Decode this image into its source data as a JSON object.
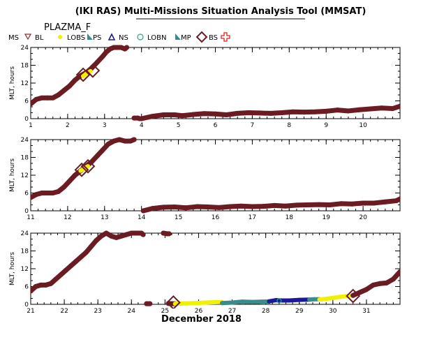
{
  "header": {
    "title": "(IKI RAS) Multi-Missions Situation Analysis Tool (MMSAT)",
    "satellite": "PLAZMA_F"
  },
  "legend": [
    {
      "label": "MS",
      "marker": "none",
      "color": "#000000"
    },
    {
      "label": "BL",
      "marker": "triangle-down-open",
      "color": "#8b2a2a"
    },
    {
      "label": "LOBS",
      "marker": "dot",
      "color": "#f0f000"
    },
    {
      "label": "PS",
      "marker": "flag",
      "color": "#3a8c8c"
    },
    {
      "label": "NS",
      "marker": "triangle-up-open",
      "color": "#1a1a9a"
    },
    {
      "label": "LOBN",
      "marker": "circle-open",
      "color": "#2aa38a"
    },
    {
      "label": "MP",
      "marker": "flag",
      "color": "#3a8c8c"
    },
    {
      "label": "BS",
      "marker": "diamond-open",
      "color": "#6b1c22"
    },
    {
      "label": "",
      "marker": "cross-open",
      "color": "#e02020"
    }
  ],
  "chart_data": [
    {
      "type": "scatter",
      "ylabel": "MLT, hours",
      "xlim": [
        1,
        11
      ],
      "ylim": [
        0,
        24
      ],
      "xticks": [
        "1",
        "2",
        "3",
        "4",
        "5",
        "6",
        "7",
        "8",
        "9",
        "10"
      ],
      "yticks": [
        "0",
        "6",
        "12",
        "18",
        "24"
      ],
      "series": [
        {
          "name": "MS",
          "color": "#6b1c22",
          "x": [
            1.0,
            1.15,
            1.3,
            1.45,
            1.6,
            1.75,
            1.9,
            2.05,
            2.2,
            2.35,
            2.5,
            2.65,
            2.8,
            2.95,
            3.05,
            3.15,
            3.25,
            3.35,
            3.45,
            3.55,
            3.6
          ],
          "y": [
            5,
            6.5,
            7,
            7,
            7,
            8,
            9.5,
            11,
            13,
            14.5,
            15.5,
            17,
            19,
            21,
            22.5,
            23.5,
            24,
            24,
            24,
            23.5,
            24
          ]
        },
        {
          "name": "MS",
          "color": "#6b1c22",
          "x": [
            3.8,
            3.9,
            3.95
          ],
          "y": [
            0.2,
            0.2,
            0
          ]
        },
        {
          "name": "MS",
          "color": "#6b1c22",
          "x": [
            4.0,
            4.3,
            4.6,
            4.9,
            5.1,
            5.4,
            5.7,
            6.0,
            6.3,
            6.6,
            6.9,
            7.2,
            7.5,
            7.8,
            8.1,
            8.4,
            8.7,
            9.0,
            9.3,
            9.6,
            9.9,
            10.2,
            10.5,
            10.8,
            11.0
          ],
          "y": [
            0,
            0.8,
            1.3,
            1.3,
            1.0,
            1.4,
            1.7,
            1.6,
            1.3,
            1.8,
            2.0,
            1.9,
            1.8,
            2.0,
            2.3,
            2.2,
            2.3,
            2.5,
            2.9,
            2.6,
            3.0,
            3.3,
            3.6,
            3.4,
            4.2
          ]
        },
        {
          "name": "LOBS",
          "color": "#f0f000",
          "x": [
            2.42,
            2.52,
            2.62
          ],
          "y": [
            14.3,
            15.3,
            16.0
          ]
        },
        {
          "name": "BS",
          "color": "#6b1c22",
          "x": [
            2.42,
            2.68
          ],
          "y": [
            14.8,
            16.2
          ]
        }
      ]
    },
    {
      "type": "scatter",
      "ylabel": "MLT, hours",
      "xlim": [
        11,
        21
      ],
      "ylim": [
        0,
        24
      ],
      "xticks": [
        "11",
        "12",
        "13",
        "14",
        "15",
        "16",
        "17",
        "18",
        "19",
        "20"
      ],
      "yticks": [
        "0",
        "6",
        "12",
        "18",
        "24"
      ],
      "series": [
        {
          "name": "MS",
          "color": "#6b1c22",
          "x": [
            11.0,
            11.15,
            11.3,
            11.45,
            11.6,
            11.75,
            11.9,
            12.05,
            12.2,
            12.35,
            12.5,
            12.65,
            12.8,
            12.95,
            13.1,
            13.25,
            13.4,
            13.55,
            13.7,
            13.8
          ],
          "y": [
            4.5,
            5.5,
            6,
            6,
            6,
            6.5,
            8,
            10,
            12,
            13.5,
            15,
            16.5,
            18.5,
            20.5,
            22.5,
            23.5,
            24,
            23.5,
            23.5,
            24
          ]
        },
        {
          "name": "MS",
          "color": "#6b1c22",
          "x": [
            14.05,
            14.3,
            14.6,
            14.9,
            15.2,
            15.5,
            15.8,
            16.1,
            16.4,
            16.7,
            17.0,
            17.3,
            17.6,
            17.9,
            18.2,
            18.5,
            18.8,
            19.1,
            19.4,
            19.7,
            20.0,
            20.3,
            20.6,
            20.9,
            21.0
          ],
          "y": [
            0,
            0.8,
            1.2,
            1.3,
            1.0,
            1.4,
            1.3,
            1.1,
            1.4,
            1.6,
            1.4,
            1.5,
            1.8,
            1.6,
            1.9,
            2.0,
            2.1,
            2.0,
            2.4,
            2.3,
            2.6,
            2.6,
            3.0,
            3.4,
            4.0
          ]
        },
        {
          "name": "LOBS",
          "color": "#f0f000",
          "x": [
            12.35,
            12.45,
            12.55
          ],
          "y": [
            13.5,
            14.3,
            15.0
          ]
        },
        {
          "name": "BS",
          "color": "#6b1c22",
          "x": [
            12.38,
            12.55
          ],
          "y": [
            13.8,
            15.0
          ]
        }
      ]
    },
    {
      "type": "scatter",
      "ylabel": "MLT, hours",
      "xlabel": "December 2018",
      "xlim": [
        21,
        32
      ],
      "ylim": [
        0,
        24
      ],
      "xticks": [
        "21",
        "22",
        "23",
        "24",
        "25",
        "26",
        "27",
        "28",
        "29",
        "30",
        "31"
      ],
      "yticks": [
        "0",
        "6",
        "12",
        "18",
        "24"
      ],
      "series": [
        {
          "name": "MS",
          "color": "#6b1c22",
          "x": [
            21.0,
            21.15,
            21.3,
            21.45,
            21.6,
            21.75,
            21.9,
            22.05,
            22.2,
            22.35,
            22.5,
            22.65,
            22.8,
            22.95,
            23.1,
            23.25,
            23.4,
            23.55,
            23.7,
            23.85,
            24.0,
            24.15,
            24.3,
            24.35
          ],
          "y": [
            4.5,
            6,
            6.5,
            6.5,
            7,
            8.5,
            10,
            11.5,
            13,
            14.5,
            16,
            17.5,
            19.5,
            21.5,
            23,
            24,
            23,
            22.5,
            23,
            23.5,
            24,
            24,
            24,
            23.5
          ]
        },
        {
          "name": "MS",
          "color": "#6b1c22",
          "x": [
            24.45,
            24.55
          ],
          "y": [
            0.2,
            0.2
          ]
        },
        {
          "name": "MS",
          "color": "#6b1c22",
          "x": [
            24.95,
            25.05,
            25.12
          ],
          "y": [
            24,
            23.8,
            23.8
          ]
        },
        {
          "name": "MS",
          "color": "#6b1c22",
          "x": [
            25.1,
            25.2,
            25.3
          ],
          "y": [
            0.3,
            0.2,
            0.2
          ]
        },
        {
          "name": "LOBS",
          "color": "#f0f000",
          "x": [
            25.3,
            25.6,
            25.9,
            26.2,
            26.5,
            26.7
          ],
          "y": [
            0.2,
            0.3,
            0.4,
            0.6,
            0.7,
            0.8
          ]
        },
        {
          "name": "PS",
          "color": "#3a8c8c",
          "x": [
            26.7,
            27.0,
            27.3,
            27.6,
            27.9,
            28.1
          ],
          "y": [
            0.4,
            0.6,
            0.9,
            0.8,
            0.9,
            0.9
          ]
        },
        {
          "name": "NS",
          "color": "#1a1a9a",
          "x": [
            28.1,
            28.3,
            28.5,
            28.7,
            29.0,
            29.3
          ],
          "y": [
            1.0,
            1.4,
            1.3,
            1.3,
            1.5,
            1.6
          ]
        },
        {
          "name": "PS",
          "color": "#3a8c8c",
          "x": [
            29.3,
            29.45,
            29.6
          ],
          "y": [
            1.6,
            1.7,
            1.7
          ]
        },
        {
          "name": "LOBS",
          "color": "#f0f000",
          "x": [
            29.6,
            29.9,
            30.2,
            30.5
          ],
          "y": [
            1.6,
            2.0,
            2.5,
            2.9
          ]
        },
        {
          "name": "MS",
          "color": "#6b1c22",
          "x": [
            30.6,
            30.8,
            31.0,
            31.2,
            31.4,
            31.6,
            31.8,
            32.0
          ],
          "y": [
            3.0,
            4.0,
            5.0,
            6.5,
            7.0,
            7.2,
            8.5,
            11.0
          ]
        },
        {
          "name": "BS",
          "color": "#6b1c22",
          "x": [
            25.25,
            30.6
          ],
          "y": [
            0.6,
            2.8
          ]
        },
        {
          "name": "LOBN",
          "color": "#2aa38a",
          "x": [
            28.4
          ],
          "y": [
            1.2
          ]
        }
      ]
    }
  ]
}
